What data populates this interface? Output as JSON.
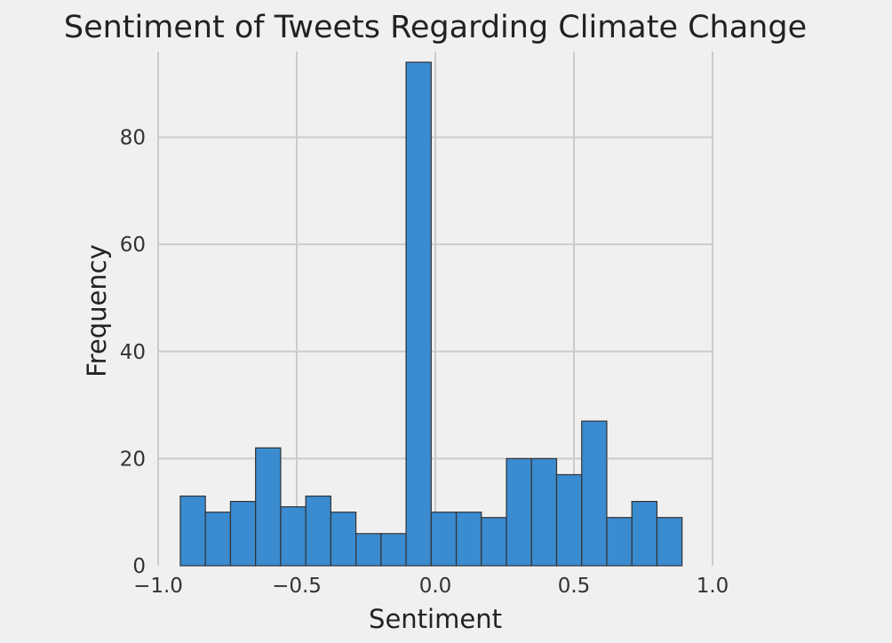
{
  "chart_data": {
    "type": "bar",
    "title": "Sentiment of Tweets Regarding Climate Change",
    "xlabel": "Sentiment",
    "ylabel": "Frequency",
    "xlim": [
      -1.0,
      1.0
    ],
    "ylim": [
      0,
      96
    ],
    "x_ticks": [
      -1.0,
      -0.5,
      0.0,
      0.5,
      1.0
    ],
    "x_tick_labels": [
      "−1.0",
      "−0.5",
      "0.0",
      "0.5",
      "1.0"
    ],
    "y_ticks": [
      0,
      20,
      40,
      60,
      80
    ],
    "y_tick_labels": [
      "0",
      "20",
      "40",
      "60",
      "80"
    ],
    "grid": true,
    "bin_edges": [
      -0.92,
      -0.8295,
      -0.739,
      -0.6485,
      -0.558,
      -0.4675,
      -0.377,
      -0.2865,
      -0.196,
      -0.1055,
      -0.015,
      0.0755,
      0.166,
      0.2565,
      0.347,
      0.4375,
      0.528,
      0.6185,
      0.709,
      0.7995,
      0.89
    ],
    "values": [
      13,
      10,
      12,
      22,
      11,
      13,
      10,
      6,
      6,
      94,
      10,
      10,
      9,
      20,
      20,
      17,
      27,
      9,
      12,
      9
    ],
    "colors": {
      "bar": "#3a8bd0",
      "edge": "#333333",
      "background": "#f0f0f0",
      "grid": "#cbcbcb"
    }
  }
}
